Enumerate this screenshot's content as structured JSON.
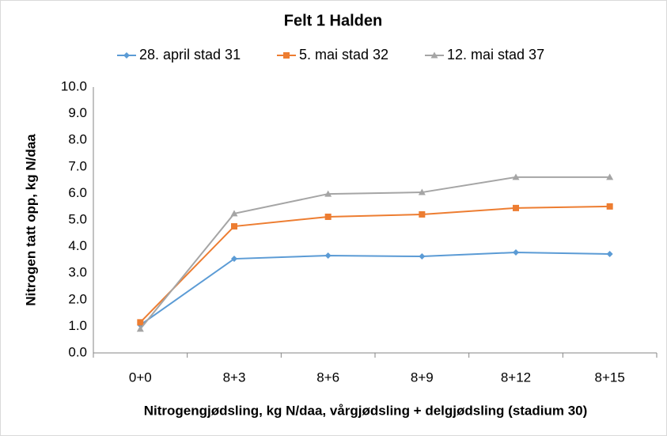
{
  "chart_data": {
    "type": "line",
    "title": "Felt 1 Halden",
    "x_label": "Nitrogengjødsling, kg N/daa, vårgjødsling + delgjødsling (stadium 30)",
    "y_label": "Nitrogen tatt opp, kg N/daa",
    "categories": [
      "0+0",
      "8+3",
      "8+6",
      "8+9",
      "8+12",
      "8+15"
    ],
    "series": [
      {
        "name": "28. april stad 31",
        "color": "#5b9bd5",
        "marker": "diamond",
        "values": [
          1.05,
          3.54,
          3.66,
          3.63,
          3.78,
          3.72
        ]
      },
      {
        "name": "5. mai stad 32",
        "color": "#ed7d31",
        "marker": "square",
        "values": [
          1.15,
          4.76,
          5.12,
          5.21,
          5.45,
          5.51
        ]
      },
      {
        "name": "12. mai stad 37",
        "color": "#a5a5a5",
        "marker": "triangle",
        "values": [
          0.9,
          5.24,
          5.98,
          6.04,
          6.61,
          6.61
        ]
      }
    ],
    "ylim": [
      0,
      10
    ],
    "yticks": [
      {
        "value": 0,
        "label": "0.0"
      },
      {
        "value": 1,
        "label": "1.0"
      },
      {
        "value": 2,
        "label": "2.0"
      },
      {
        "value": 3,
        "label": "3.0"
      },
      {
        "value": 4,
        "label": "4.0"
      },
      {
        "value": 5,
        "label": "5.0"
      },
      {
        "value": 6,
        "label": "6.0"
      },
      {
        "value": 7,
        "label": "7.0"
      },
      {
        "value": 8,
        "label": "8.0"
      },
      {
        "value": 9,
        "label": "9.0"
      },
      {
        "value": 10,
        "label": "10.0"
      }
    ],
    "grid": false,
    "legend": "top"
  }
}
